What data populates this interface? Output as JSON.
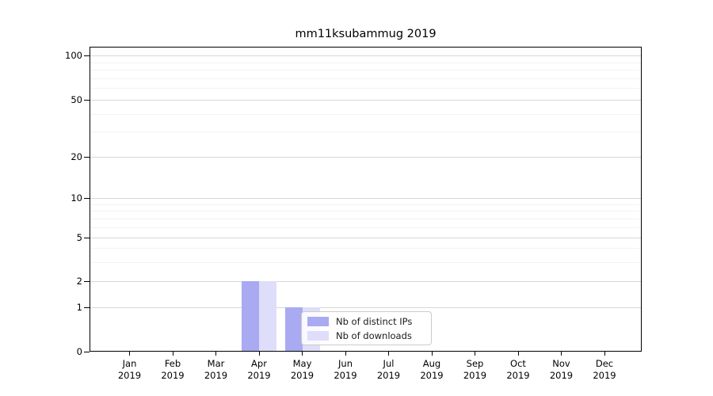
{
  "chart_data": {
    "type": "bar",
    "title": "mm11ksubammug 2019",
    "categories": [
      "Jan 2019",
      "Feb 2019",
      "Mar 2019",
      "Apr 2019",
      "May 2019",
      "Jun 2019",
      "Jul 2019",
      "Aug 2019",
      "Sep 2019",
      "Oct 2019",
      "Nov 2019",
      "Dec 2019"
    ],
    "series": [
      {
        "name": "Nb of distinct IPs",
        "color": "#aaaaf2",
        "values": [
          0,
          0,
          0,
          2,
          1,
          0,
          0,
          0,
          0,
          0,
          0,
          0
        ]
      },
      {
        "name": "Nb of downloads",
        "color": "#dedefa",
        "values": [
          0,
          0,
          0,
          2,
          1,
          0,
          0,
          0,
          0,
          0,
          0,
          0
        ]
      }
    ],
    "yscale": "symlog",
    "ylim": [
      0,
      130
    ],
    "y_tick_values": [
      0,
      1,
      2,
      5,
      10,
      20,
      50,
      100
    ],
    "y_minor_tick_values": [
      3,
      4,
      6,
      7,
      8,
      9,
      30,
      40,
      60,
      70,
      80,
      90
    ],
    "xlabel": "",
    "ylabel": "",
    "grid": "horizontal, major and minor",
    "legend": {
      "position": "inside, lower center-right",
      "labels": [
        "Nb of distinct IPs",
        "Nb of downloads"
      ]
    }
  }
}
